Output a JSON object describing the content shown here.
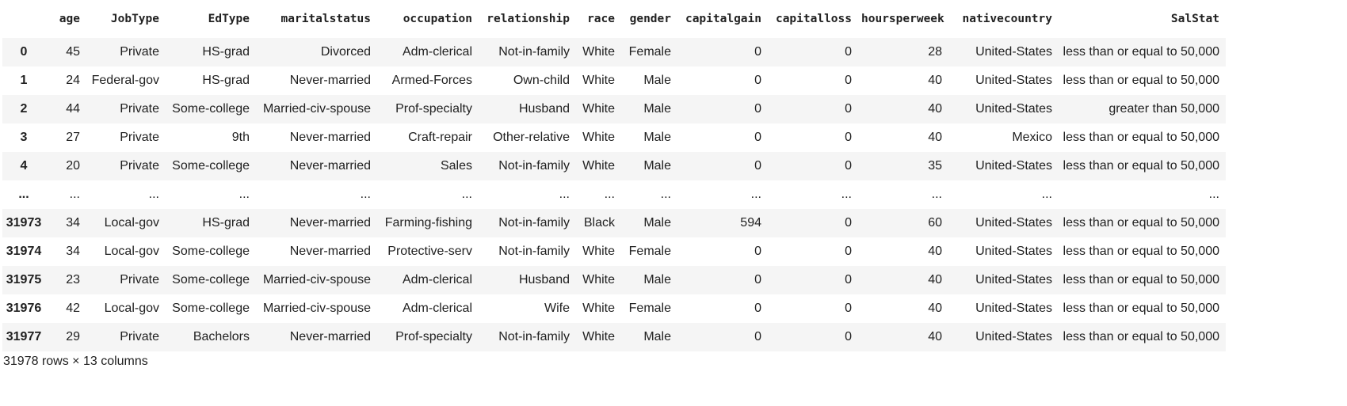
{
  "columns": [
    "",
    "age",
    "JobType",
    "EdType",
    "maritalstatus",
    "occupation",
    "relationship",
    "race",
    "gender",
    "capitalgain",
    "capitalloss",
    "hoursperweek",
    "nativecountry",
    "SalStat"
  ],
  "rows": [
    [
      "0",
      "45",
      "Private",
      "HS-grad",
      "Divorced",
      "Adm-clerical",
      "Not-in-family",
      "White",
      "Female",
      "0",
      "0",
      "28",
      "United-States",
      "less than or equal to 50,000"
    ],
    [
      "1",
      "24",
      "Federal-gov",
      "HS-grad",
      "Never-married",
      "Armed-Forces",
      "Own-child",
      "White",
      "Male",
      "0",
      "0",
      "40",
      "United-States",
      "less than or equal to 50,000"
    ],
    [
      "2",
      "44",
      "Private",
      "Some-college",
      "Married-civ-spouse",
      "Prof-specialty",
      "Husband",
      "White",
      "Male",
      "0",
      "0",
      "40",
      "United-States",
      "greater than 50,000"
    ],
    [
      "3",
      "27",
      "Private",
      "9th",
      "Never-married",
      "Craft-repair",
      "Other-relative",
      "White",
      "Male",
      "0",
      "0",
      "40",
      "Mexico",
      "less than or equal to 50,000"
    ],
    [
      "4",
      "20",
      "Private",
      "Some-college",
      "Never-married",
      "Sales",
      "Not-in-family",
      "White",
      "Male",
      "0",
      "0",
      "35",
      "United-States",
      "less than or equal to 50,000"
    ],
    [
      "...",
      "...",
      "...",
      "...",
      "...",
      "...",
      "...",
      "...",
      "...",
      "...",
      "...",
      "...",
      "...",
      "..."
    ],
    [
      "31973",
      "34",
      "Local-gov",
      "HS-grad",
      "Never-married",
      "Farming-fishing",
      "Not-in-family",
      "Black",
      "Male",
      "594",
      "0",
      "60",
      "United-States",
      "less than or equal to 50,000"
    ],
    [
      "31974",
      "34",
      "Local-gov",
      "Some-college",
      "Never-married",
      "Protective-serv",
      "Not-in-family",
      "White",
      "Female",
      "0",
      "0",
      "40",
      "United-States",
      "less than or equal to 50,000"
    ],
    [
      "31975",
      "23",
      "Private",
      "Some-college",
      "Married-civ-spouse",
      "Adm-clerical",
      "Husband",
      "White",
      "Male",
      "0",
      "0",
      "40",
      "United-States",
      "less than or equal to 50,000"
    ],
    [
      "31976",
      "42",
      "Local-gov",
      "Some-college",
      "Married-civ-spouse",
      "Adm-clerical",
      "Wife",
      "White",
      "Female",
      "0",
      "0",
      "40",
      "United-States",
      "less than or equal to 50,000"
    ],
    [
      "31977",
      "29",
      "Private",
      "Bachelors",
      "Never-married",
      "Prof-specialty",
      "Not-in-family",
      "White",
      "Male",
      "0",
      "0",
      "40",
      "United-States",
      "less than or equal to 50,000"
    ]
  ],
  "shape_text": "31978 rows × 13 columns"
}
